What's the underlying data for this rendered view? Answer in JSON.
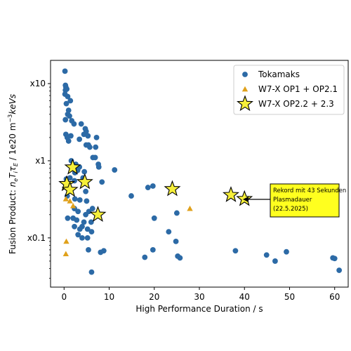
{
  "chart_data": {
    "type": "scatter",
    "title": "",
    "xlabel": "High Performance Duration / s",
    "ylabel_prefix": "Fusion Product:  ",
    "ylabel_math": "n",
    "ylabel_sub1": "e",
    "ylabel_t": "T",
    "ylabel_sub2": "i",
    "ylabel_tau": "τ",
    "ylabel_sub3": "E",
    "ylabel_suffix": " / 1e20 m",
    "ylabel_exp": "−3",
    "ylabel_unit": "keVs",
    "xlim": [
      -3,
      63
    ],
    "ylim": [
      0.023,
      20
    ],
    "yscale": "log",
    "grid": false,
    "legend_position": "top-right",
    "x_ticks": [
      0,
      10,
      20,
      30,
      40,
      50,
      60
    ],
    "x_tick_labels": [
      "0",
      "10",
      "20",
      "30",
      "40",
      "50",
      "60"
    ],
    "y_ticks": [
      0.1,
      1,
      10
    ],
    "y_tick_labels": [
      "x0.1",
      "x1",
      "x10"
    ],
    "series": [
      {
        "name": "Tokamaks",
        "marker": "circle",
        "color": "#2c6aa6",
        "points": [
          [
            0.2,
            14.5
          ],
          [
            0.3,
            9.5
          ],
          [
            0.4,
            9.0
          ],
          [
            0.3,
            8.2
          ],
          [
            0.6,
            8.5
          ],
          [
            0.2,
            7.3
          ],
          [
            0.8,
            6.8
          ],
          [
            0.5,
            5.5
          ],
          [
            1.4,
            6.0
          ],
          [
            1.0,
            4.5
          ],
          [
            0.3,
            3.4
          ],
          [
            0.8,
            4.0
          ],
          [
            1.2,
            3.8
          ],
          [
            1.7,
            3.3
          ],
          [
            0.4,
            2.2
          ],
          [
            0.7,
            2.0
          ],
          [
            1.0,
            1.8
          ],
          [
            2.2,
            3.0
          ],
          [
            1.5,
            2.1
          ],
          [
            3.8,
            3.0
          ],
          [
            4.7,
            2.6
          ],
          [
            4.4,
            2.2
          ],
          [
            4.9,
            2.4
          ],
          [
            5.3,
            2.1
          ],
          [
            7.0,
            1.5
          ],
          [
            3.4,
            1.9
          ],
          [
            4.9,
            1.6
          ],
          [
            5.4,
            1.6
          ],
          [
            5.7,
            1.5
          ],
          [
            7.2,
            2.0
          ],
          [
            6.4,
            1.1
          ],
          [
            6.9,
            1.1
          ],
          [
            1.6,
            1.0
          ],
          [
            2.6,
            0.9
          ],
          [
            3.4,
            0.83
          ],
          [
            7.6,
            0.9
          ],
          [
            7.7,
            0.83
          ],
          [
            11.2,
            0.76
          ],
          [
            2.4,
            0.7
          ],
          [
            3.0,
            0.75
          ],
          [
            4.5,
            0.72
          ],
          [
            1.3,
            0.6
          ],
          [
            4.2,
            0.6
          ],
          [
            0.5,
            0.58
          ],
          [
            2.3,
            0.55
          ],
          [
            4.8,
            0.4
          ],
          [
            8.4,
            0.53
          ],
          [
            0.7,
            0.35
          ],
          [
            2.4,
            0.32
          ],
          [
            3.5,
            0.31
          ],
          [
            5.0,
            0.3
          ],
          [
            14.9,
            0.35
          ],
          [
            18.6,
            0.45
          ],
          [
            19.7,
            0.47
          ],
          [
            2.3,
            0.24
          ],
          [
            3.1,
            0.22
          ],
          [
            4.8,
            0.2
          ],
          [
            5.5,
            0.22
          ],
          [
            6.3,
            0.24
          ],
          [
            25.0,
            0.21
          ],
          [
            0.8,
            0.18
          ],
          [
            2.0,
            0.18
          ],
          [
            2.8,
            0.17
          ],
          [
            4.4,
            0.16
          ],
          [
            6.0,
            0.16
          ],
          [
            20.0,
            0.18
          ],
          [
            2.3,
            0.14
          ],
          [
            3.5,
            0.13
          ],
          [
            4.0,
            0.14
          ],
          [
            5.2,
            0.13
          ],
          [
            6.1,
            0.12
          ],
          [
            23.2,
            0.12
          ],
          [
            3.1,
            0.11
          ],
          [
            4.0,
            0.1
          ],
          [
            5.2,
            0.1
          ],
          [
            24.8,
            0.09
          ],
          [
            5.4,
            0.07
          ],
          [
            8.1,
            0.065
          ],
          [
            8.8,
            0.068
          ],
          [
            19.7,
            0.07
          ],
          [
            17.9,
            0.056
          ],
          [
            25.2,
            0.058
          ],
          [
            25.7,
            0.055
          ],
          [
            38.0,
            0.068
          ],
          [
            44.9,
            0.06
          ],
          [
            46.8,
            0.05
          ],
          [
            49.3,
            0.066
          ],
          [
            59.6,
            0.055
          ],
          [
            60.0,
            0.054
          ],
          [
            61.0,
            0.038
          ],
          [
            6.1,
            0.036
          ]
        ]
      },
      {
        "name": "W7-X OP1 + OP2.1",
        "marker": "triangle",
        "color": "#e0a11b",
        "points": [
          [
            0.4,
            0.32
          ],
          [
            1.3,
            0.3
          ],
          [
            2.0,
            0.26
          ],
          [
            0.5,
            0.09
          ],
          [
            0.4,
            0.062
          ],
          [
            27.9,
            0.24
          ]
        ]
      },
      {
        "name": "W7-X OP2.2 + 2.3",
        "marker": "star",
        "color": "#f6ef3a",
        "points": [
          [
            1.9,
            0.82
          ],
          [
            0.6,
            0.5
          ],
          [
            1.3,
            0.42
          ],
          [
            4.6,
            0.53
          ],
          [
            7.5,
            0.2
          ],
          [
            24.0,
            0.43
          ],
          [
            37.0,
            0.36
          ],
          [
            40.0,
            0.32
          ]
        ]
      }
    ],
    "annotation": {
      "lines": [
        "Rekord mit 43 Sekunden",
        "Plasmadauer",
        "(22.5.2025)"
      ],
      "box_color": "#ffff1f",
      "arrow_target": [
        41.2,
        0.32
      ]
    }
  }
}
